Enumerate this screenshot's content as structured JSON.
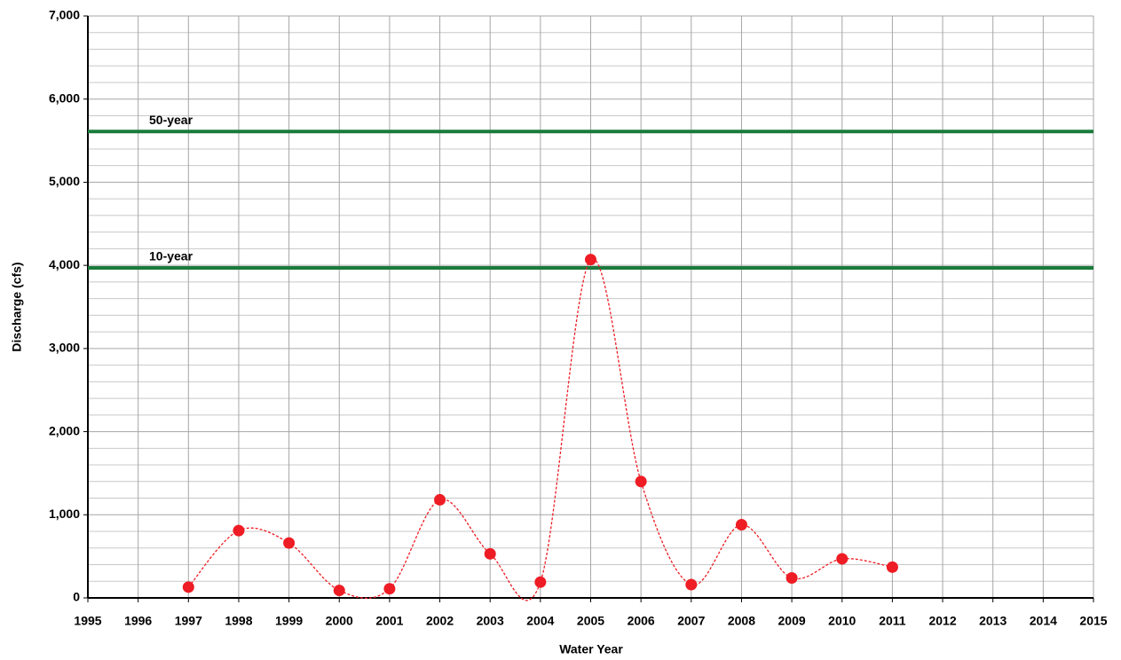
{
  "chart_data": {
    "type": "line",
    "x_label": "Water Year",
    "y_label": "Discharge (cfs)",
    "x": [
      1997,
      1998,
      1999,
      2000,
      2001,
      2002,
      2003,
      2004,
      2005,
      2006,
      2007,
      2008,
      2009,
      2010,
      2011
    ],
    "values": [
      130,
      810,
      660,
      90,
      110,
      1180,
      530,
      190,
      4070,
      1400,
      160,
      880,
      240,
      470,
      370
    ],
    "color": "#ee1c24",
    "line_style": "dashed",
    "smooth": true,
    "xlim": [
      1995,
      2015
    ],
    "xticks": [
      1995,
      1996,
      1997,
      1998,
      1999,
      2000,
      2001,
      2002,
      2003,
      2004,
      2005,
      2006,
      2007,
      2008,
      2009,
      2010,
      2011,
      2012,
      2013,
      2014,
      2015
    ],
    "ylim": [
      0,
      7000
    ],
    "yticks": [
      0,
      {
        "value": 1000,
        "label": "1,000"
      },
      {
        "value": 2000,
        "label": "2,000"
      },
      {
        "value": 3000,
        "label": "3,000"
      },
      {
        "value": 4000,
        "label": "4,000"
      },
      {
        "value": 5000,
        "label": "5,000"
      },
      {
        "value": 6000,
        "label": "6,000"
      },
      {
        "value": 7000,
        "label": "7,000"
      }
    ],
    "yminor": [
      200,
      400,
      600,
      800,
      1200,
      1400,
      1600,
      1800,
      2200,
      2400,
      2600,
      2800,
      3200,
      3400,
      3600,
      3800,
      4200,
      4400,
      4600,
      4800,
      5200,
      5400,
      5600,
      5800,
      6200,
      6400,
      6600,
      6800
    ],
    "grid": true,
    "reference_lines": [
      {
        "label": "50-year",
        "value": 5610,
        "color": "#1b7a3c"
      },
      {
        "label": "10-year",
        "value": 3970,
        "color": "#1b7a3c"
      }
    ]
  }
}
